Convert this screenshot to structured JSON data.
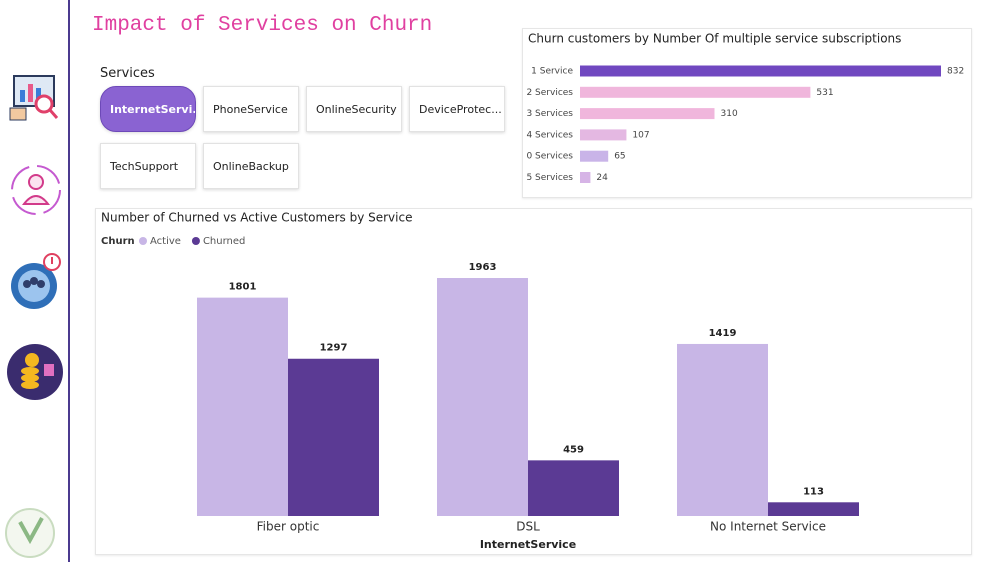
{
  "page_title": "Impact of Services on Churn",
  "slicer": {
    "title": "Services",
    "options": [
      "InternetServi...",
      "PhoneService",
      "OnlineSecurity",
      "DeviceProtec...",
      "TechSupport",
      "OnlineBackup"
    ],
    "selected": 0
  },
  "chart_data": [
    {
      "type": "hbar",
      "title": "Churn customers by Number Of multiple service subscriptions",
      "categories": [
        "1 Service",
        "2 Services",
        "3 Services",
        "4 Services",
        "0 Services",
        "5 Services"
      ],
      "values": [
        832,
        531,
        310,
        107,
        65,
        24
      ],
      "colors": [
        "#7048c0",
        "#f0b6dc",
        "#f0b6dc",
        "#e4b8e2",
        "#c9b4e8",
        "#d6b4e6"
      ]
    },
    {
      "type": "grouped_bar",
      "title": "Number of Churned vs Active Customers by Service",
      "legend_title": "Churn",
      "x_label": "InternetService",
      "categories": [
        "Fiber optic",
        "DSL",
        "No Internet Service"
      ],
      "series": [
        {
          "name": "Active",
          "color": "#c8b6e6",
          "values": [
            1801,
            1963,
            1419
          ]
        },
        {
          "name": "Churned",
          "color": "#5b3a94",
          "values": [
            1297,
            459,
            113
          ]
        }
      ]
    }
  ]
}
